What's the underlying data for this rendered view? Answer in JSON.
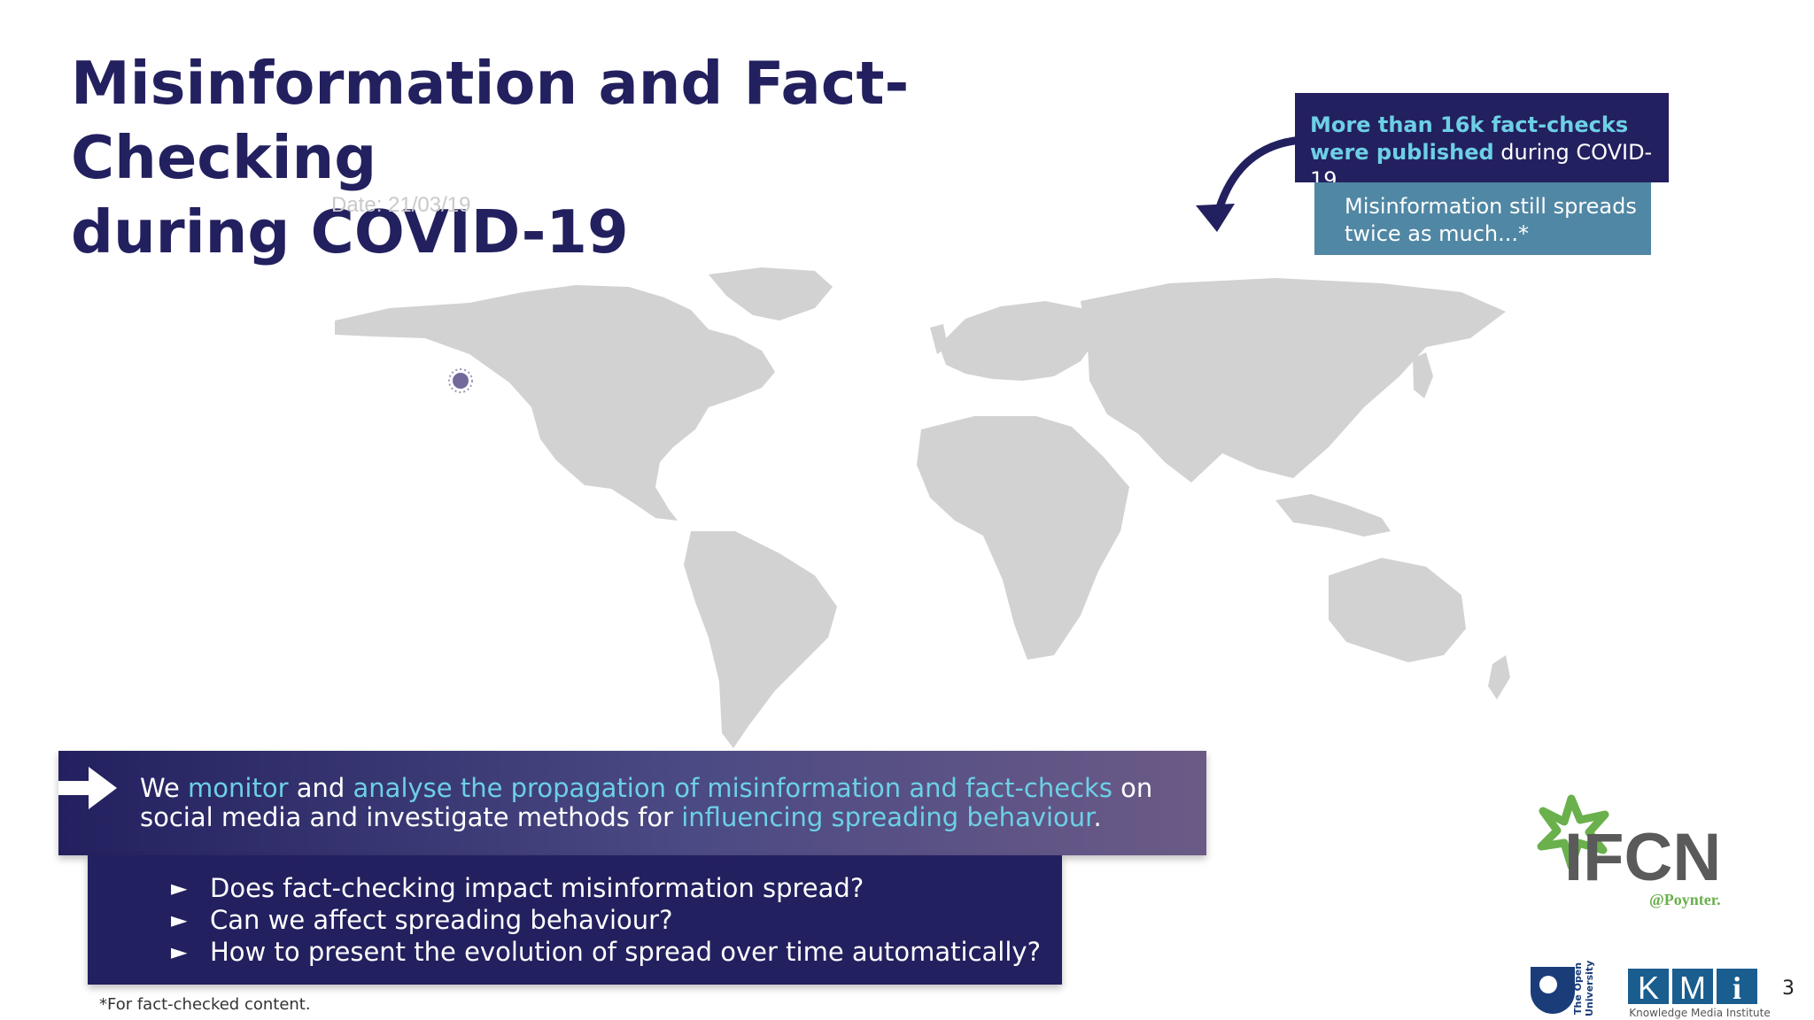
{
  "title": {
    "line1": "Misinformation and Fact-Checking",
    "line2": "during COVID-19"
  },
  "map": {
    "date_label": "Date: 21/03/19",
    "land_color": "#d2d2d2",
    "marker_color": "#5c4f8a"
  },
  "stat_box": {
    "highlight": "More than 16k fact-checks were published",
    "rest": " during COVID-19"
  },
  "spread_box": {
    "line1": "Misinformation still spreads",
    "line2": "twice as much...*"
  },
  "banner": {
    "p1": "We ",
    "h1": "monitor",
    "p2": " and ",
    "h2": "analyse the propagation of misinformation and fact-checks",
    "p3": " on social media and investigate methods for ",
    "h3": "influencing spreading behaviour",
    "p4": "."
  },
  "questions": [
    {
      "marker": "►",
      "text": "Does fact-checking impact misinformation spread?"
    },
    {
      "marker": "►",
      "text": "Can we affect spreading behaviour?"
    },
    {
      "marker": "►",
      "text": "How to present the evolution of spread over time automatically?"
    }
  ],
  "footnote": "*For fact-checked content.",
  "logos": {
    "ifcn": "IFCN",
    "ifcn_sub": "@Poynter.",
    "ou": "The Open University",
    "kmi": "KMi",
    "kmi_sub": "Knowledge Media Institute"
  },
  "page_number": "3",
  "colors": {
    "navy": "#23205f",
    "accent": "#6dd0e6",
    "steel": "#5087a4",
    "ifcn_green": "#6ab04c"
  }
}
